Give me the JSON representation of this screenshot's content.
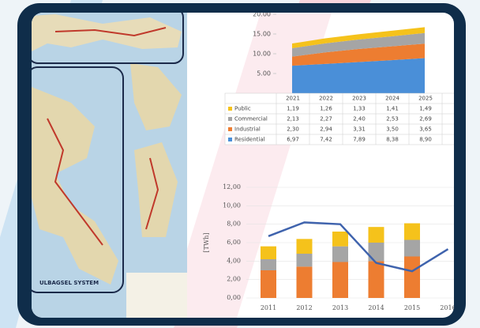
{
  "map_labels": [
    "ULBAGSEL SYSTEM"
  ],
  "chart_data": [
    {
      "type": "area",
      "stacked": true,
      "categories": [
        "2021",
        "2022",
        "2023",
        "2024",
        "2025"
      ],
      "ylim": [
        0,
        20
      ],
      "yticks": [
        {
          "value": 5,
          "label": "5.00"
        },
        {
          "value": 10,
          "label": "10.00"
        },
        {
          "value": 15,
          "label": "15.00"
        },
        {
          "value": 20,
          "label": "20.00"
        }
      ],
      "series": [
        {
          "name": "Residential",
          "color": "#4a8fd8",
          "values": [
            6.97,
            7.42,
            7.89,
            8.38,
            8.9
          ],
          "value_labels": [
            "6,97",
            "7,42",
            "7,89",
            "8,38",
            "8,90"
          ]
        },
        {
          "name": "Industrial",
          "color": "#ed7d31",
          "values": [
            2.3,
            2.94,
            3.31,
            3.5,
            3.65
          ],
          "value_labels": [
            "2,30",
            "2,94",
            "3,31",
            "3,50",
            "3,65"
          ]
        },
        {
          "name": "Commercial",
          "color": "#a5a5a5",
          "values": [
            2.13,
            2.27,
            2.4,
            2.53,
            2.69
          ],
          "value_labels": [
            "2,13",
            "2,27",
            "2,40",
            "2,53",
            "2,69"
          ]
        },
        {
          "name": "Public",
          "color": "#f5c21b",
          "values": [
            1.19,
            1.26,
            1.33,
            1.41,
            1.49
          ],
          "value_labels": [
            "1,19",
            "1,26",
            "1,33",
            "1,41",
            "1,49"
          ]
        }
      ]
    },
    {
      "type": "bar",
      "stacked": true,
      "y_label": "[TWh]",
      "categories": [
        "2011",
        "2012",
        "2013",
        "2014",
        "2015",
        "2016"
      ],
      "ylim": [
        0,
        12
      ],
      "yticks": [
        {
          "value": 0,
          "label": "0,00"
        },
        {
          "value": 2,
          "label": "2,00"
        },
        {
          "value": 4,
          "label": "4,00"
        },
        {
          "value": 6,
          "label": "6,00"
        },
        {
          "value": 8,
          "label": "8,00"
        },
        {
          "value": 10,
          "label": "10,00"
        },
        {
          "value": 12,
          "label": "12,00"
        }
      ],
      "series": [
        {
          "color": "#ed7d31",
          "values": [
            3.0,
            3.4,
            3.9,
            4.0,
            4.5,
            null
          ]
        },
        {
          "color": "#a5a5a5",
          "values": [
            1.2,
            1.4,
            1.7,
            2.0,
            1.8,
            null
          ]
        },
        {
          "color": "#f5c21b",
          "values": [
            1.4,
            1.6,
            1.6,
            1.7,
            1.8,
            null
          ]
        },
        {
          "type": "line",
          "color": "#3f63ad",
          "values": [
            6.7,
            8.2,
            8.0,
            3.8,
            2.9,
            5.3
          ]
        }
      ]
    }
  ]
}
